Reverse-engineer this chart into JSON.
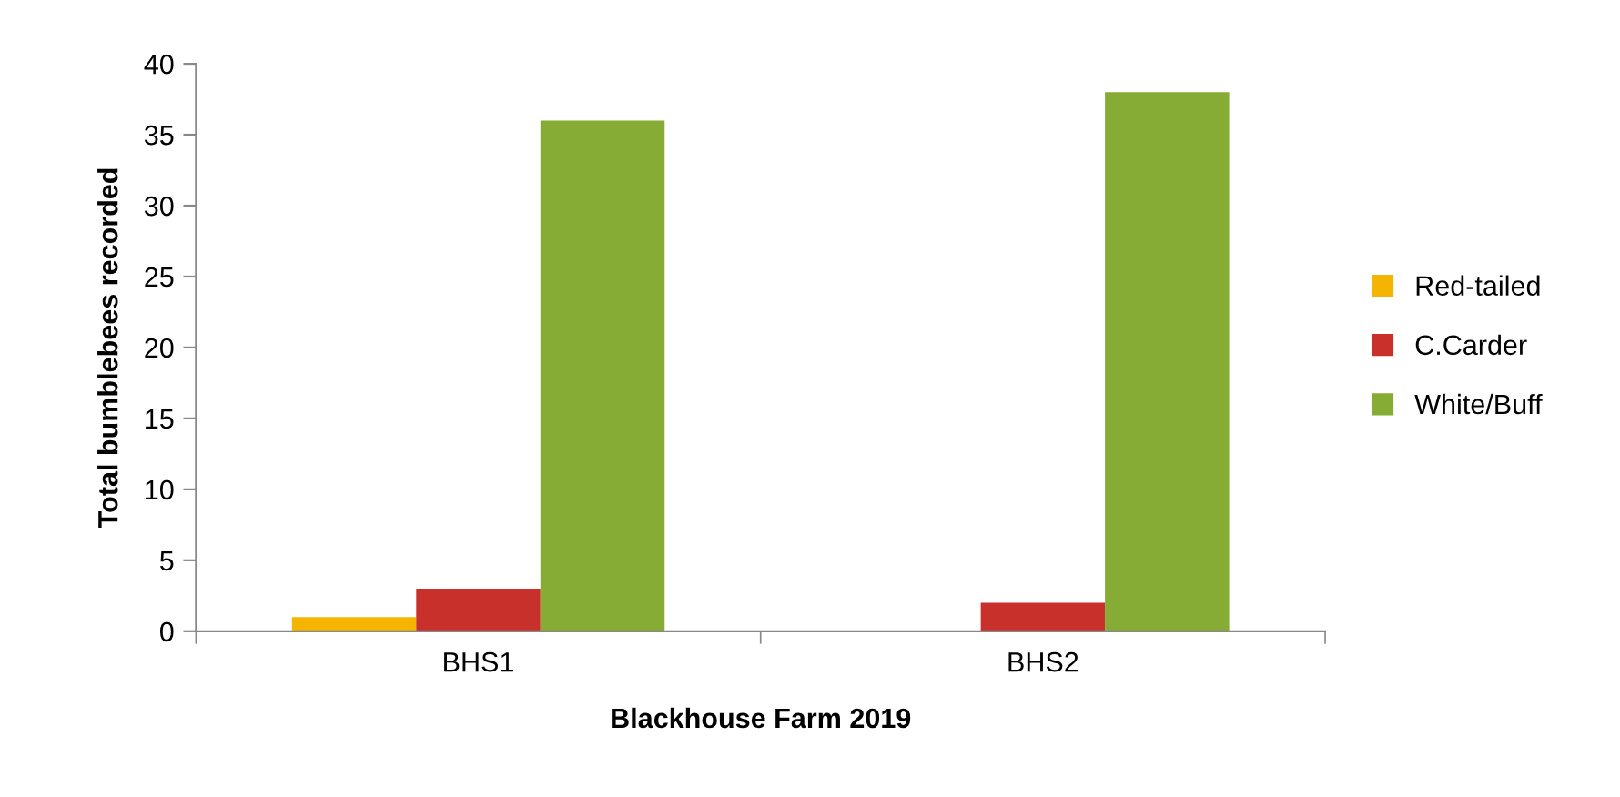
{
  "chart_data": {
    "type": "bar",
    "xlabel": "Blackhouse Farm 2019",
    "ylabel": "Total bumblebees recorded",
    "categories": [
      "BHS1",
      "BHS2"
    ],
    "series": [
      {
        "name": "Red-tailed",
        "color": "#f5b400",
        "values": [
          1,
          0
        ]
      },
      {
        "name": "C.Carder",
        "color": "#c8302c",
        "values": [
          3,
          2
        ]
      },
      {
        "name": "White/Buff",
        "color": "#86ac35",
        "values": [
          36,
          38
        ]
      }
    ],
    "ylim": [
      0,
      40
    ],
    "yticks": [
      0,
      5,
      10,
      15,
      20,
      25,
      30,
      35,
      40
    ],
    "grid": false,
    "legend": "right"
  }
}
